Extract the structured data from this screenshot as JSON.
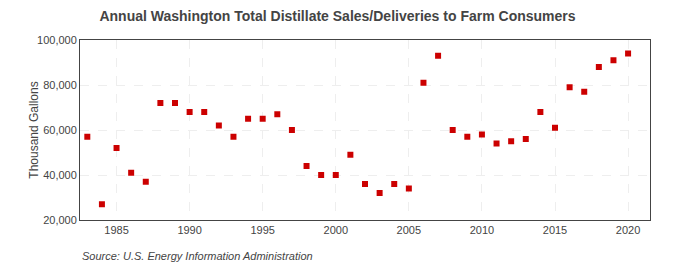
{
  "chart_data": {
    "type": "scatter",
    "title": "Annual Washington Total Distillate Sales/Deliveries to Farm Consumers",
    "ylabel": "Thousand Gallons",
    "annotations": [
      "Source: U.S. Energy Information Administration"
    ],
    "x": [
      1983,
      1984,
      1985,
      1986,
      1987,
      1988,
      1989,
      1990,
      1991,
      1992,
      1993,
      1994,
      1995,
      1996,
      1997,
      1998,
      1999,
      2000,
      2001,
      2002,
      2003,
      2004,
      2005,
      2006,
      2007,
      2008,
      2009,
      2010,
      2011,
      2012,
      2013,
      2014,
      2015,
      2016,
      2017,
      2018,
      2019,
      2020
    ],
    "values": [
      57000,
      27000,
      52000,
      41000,
      37000,
      72000,
      72000,
      68000,
      68000,
      62000,
      57000,
      65000,
      65000,
      67000,
      60000,
      44000,
      40000,
      40000,
      49000,
      36000,
      32000,
      36000,
      34000,
      81000,
      93000,
      60000,
      57000,
      58000,
      54000,
      55000,
      56000,
      68000,
      61000,
      79000,
      77000,
      88000,
      91000,
      94000
    ],
    "color": "#cc0000",
    "marker": "square",
    "xlim": [
      1982.5,
      2021.5
    ],
    "xticks": [
      1985,
      1990,
      1995,
      2000,
      2005,
      2010,
      2015,
      2020
    ],
    "ylim": [
      20000,
      100000
    ],
    "yticks": [
      {
        "value": 20000,
        "label": "20,000"
      },
      {
        "value": 40000,
        "label": "40,000"
      },
      {
        "value": 60000,
        "label": "60,000"
      },
      {
        "value": 80000,
        "label": "80,000"
      },
      {
        "value": 100000,
        "label": "100,000"
      }
    ],
    "grid": true
  }
}
